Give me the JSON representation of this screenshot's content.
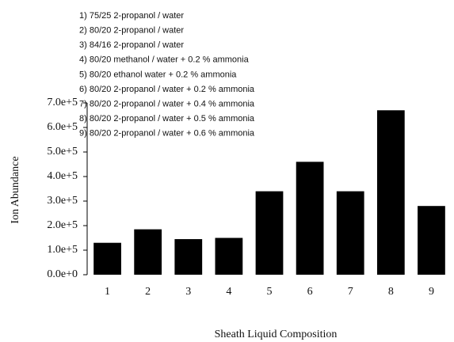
{
  "chart_data": {
    "type": "bar",
    "x_label": "Sheath Liquid Composition",
    "y_label": "Ion Abundance",
    "annotations": [
      "1) 75/25  2-propanol / water",
      "2) 80/20  2-propanol / water",
      "3) 84/16  2-propanol / water",
      "4) 80/20  methanol / water + 0.2 % ammonia",
      "5) 80/20  ethanol water + 0.2 % ammonia",
      "6) 80/20  2-propanol / water + 0.2 % ammonia",
      "7) 80/20  2-propanol / water + 0.4 % ammonia",
      "8) 80/20  2-propanol / water + 0.5 % ammonia",
      "9) 80/20  2-propanol / water + 0.6 % ammonia"
    ],
    "categories": [
      "1",
      "2",
      "3",
      "4",
      "5",
      "6",
      "7",
      "8",
      "9"
    ],
    "values": [
      130000,
      185000,
      145000,
      150000,
      340000,
      460000,
      340000,
      670000,
      280000
    ],
    "color": "#000000",
    "ylim": [
      0,
      700000
    ],
    "yticks": [
      {
        "value": 0,
        "label": "0.0e+0"
      },
      {
        "value": 100000,
        "label": "1.0e+5"
      },
      {
        "value": 200000,
        "label": "2.0e+5"
      },
      {
        "value": 300000,
        "label": "3.0e+5"
      },
      {
        "value": 400000,
        "label": "4.0e+5"
      },
      {
        "value": 500000,
        "label": "5.0e+5"
      },
      {
        "value": 600000,
        "label": "6.0e+5"
      },
      {
        "value": 700000,
        "label": "7.0e+5"
      }
    ]
  }
}
